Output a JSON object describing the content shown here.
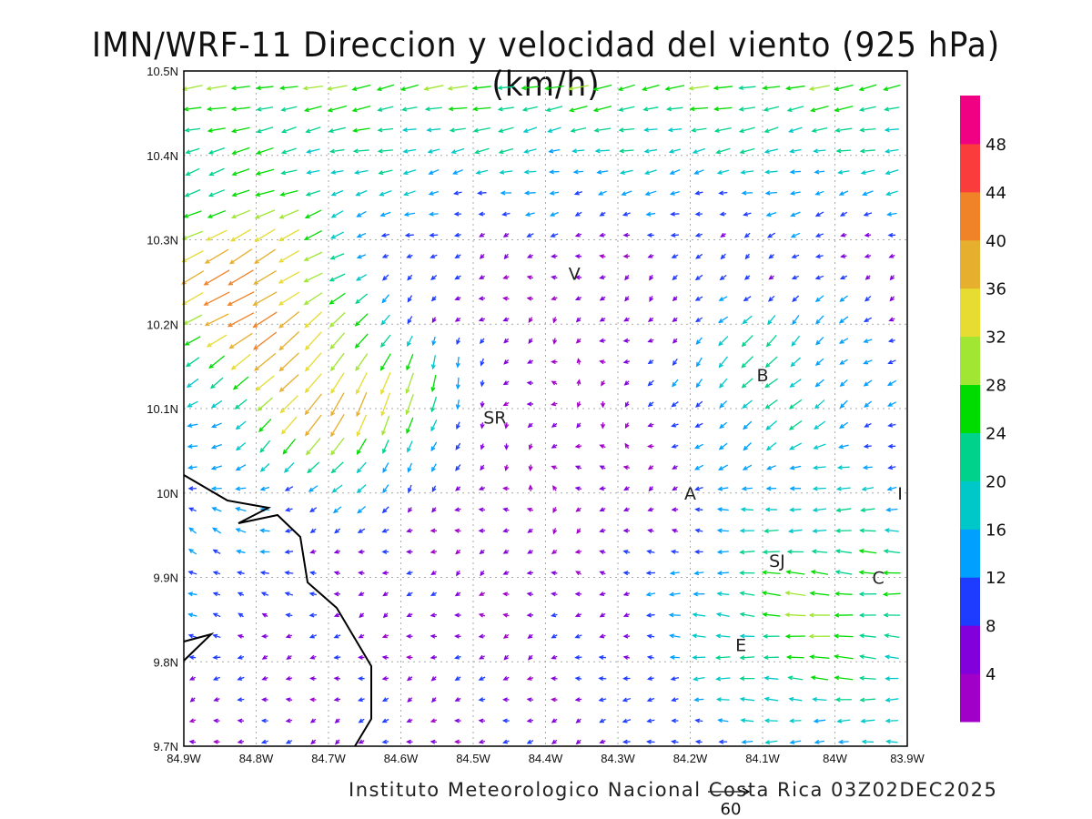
{
  "title": "IMN/WRF-11 Direccion y velocidad del viento (925 hPa)(km/h)",
  "footer": "Instituto Meteorologico Nacional Costa Rica 03Z02DEC2025",
  "reference_vector": {
    "label": "60",
    "value_kmh": 60
  },
  "map": {
    "lon_range": [
      -84.9,
      -83.9
    ],
    "lat_range": [
      9.7,
      10.5
    ],
    "x_ticks": [
      {
        "lon": -84.9,
        "label": "84.9W"
      },
      {
        "lon": -84.8,
        "label": "84.8W"
      },
      {
        "lon": -84.7,
        "label": "84.7W"
      },
      {
        "lon": -84.6,
        "label": "84.6W"
      },
      {
        "lon": -84.5,
        "label": "84.5W"
      },
      {
        "lon": -84.4,
        "label": "84.4W"
      },
      {
        "lon": -84.3,
        "label": "84.3W"
      },
      {
        "lon": -84.2,
        "label": "84.2W"
      },
      {
        "lon": -84.1,
        "label": "84.1W"
      },
      {
        "lon": -84.0,
        "label": "84W"
      },
      {
        "lon": -83.9,
        "label": "83.9W"
      }
    ],
    "y_ticks": [
      {
        "lat": 9.7,
        "label": "9.7N"
      },
      {
        "lat": 9.8,
        "label": "9.8N"
      },
      {
        "lat": 9.9,
        "label": "9.9N"
      },
      {
        "lat": 10.0,
        "label": "10N"
      },
      {
        "lat": 10.1,
        "label": "10.1N"
      },
      {
        "lat": 10.2,
        "label": "10.2N"
      },
      {
        "lat": 10.3,
        "label": "10.3N"
      },
      {
        "lat": 10.4,
        "label": "10.4N"
      },
      {
        "lat": 10.5,
        "label": "10.5N"
      }
    ],
    "cities": [
      {
        "label": "V",
        "lon": -84.36,
        "lat": 10.26
      },
      {
        "label": "B",
        "lon": -84.1,
        "lat": 10.14
      },
      {
        "label": "SR",
        "lon": -84.47,
        "lat": 10.09
      },
      {
        "label": "A",
        "lon": -84.2,
        "lat": 10.0
      },
      {
        "label": "I",
        "lon": -83.91,
        "lat": 10.0
      },
      {
        "label": "SJ",
        "lon": -84.08,
        "lat": 9.92
      },
      {
        "label": "C",
        "lon": -83.94,
        "lat": 9.9
      },
      {
        "label": "E",
        "lon": -84.13,
        "lat": 9.82
      }
    ]
  },
  "colorbar": {
    "labels": [
      "4",
      "8",
      "12",
      "16",
      "20",
      "24",
      "28",
      "32",
      "36",
      "40",
      "44",
      "48"
    ],
    "colors": [
      "#a000c8",
      "#8200dc",
      "#1e3cff",
      "#00a0ff",
      "#00c8c8",
      "#00d28c",
      "#00dc00",
      "#a0e632",
      "#e6dc32",
      "#e6af2d",
      "#f08228",
      "#fa3c3c",
      "#f00082"
    ]
  }
}
